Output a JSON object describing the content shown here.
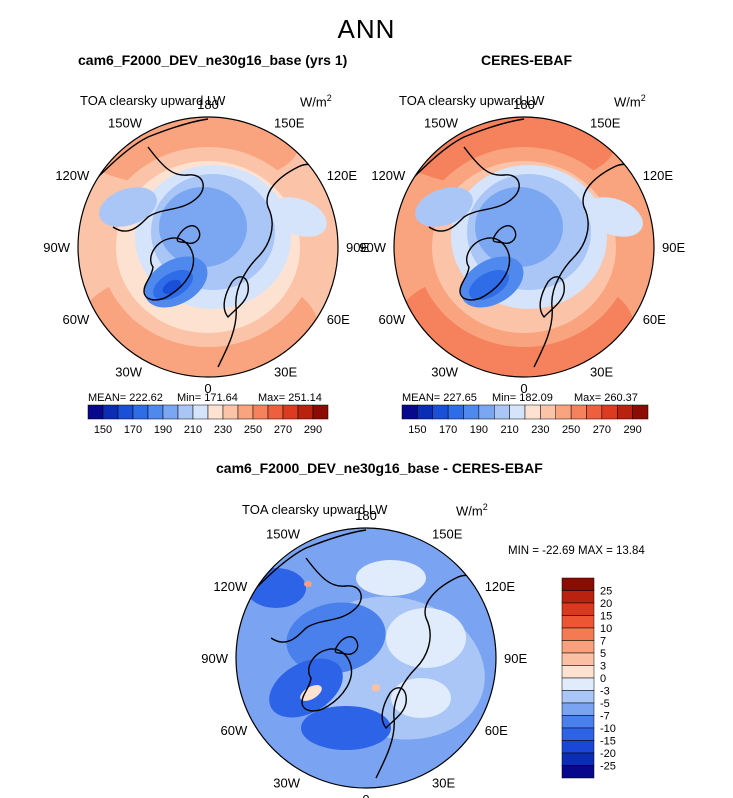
{
  "title": "ANN",
  "colors": {
    "abs_scale": [
      "#08088c",
      "#0b2db6",
      "#1a4fd8",
      "#2f6ce8",
      "#5089ee",
      "#7ba6f2",
      "#a9c6f6",
      "#d5e4fb",
      "#fde2d2",
      "#fbc4a8",
      "#f9a47f",
      "#f5825c",
      "#ee5f3d",
      "#dd3a22",
      "#b8220f",
      "#8a0c04"
    ],
    "diff_scale": [
      "#08088c",
      "#0b2db6",
      "#1b47d8",
      "#2d63e6",
      "#4a80ec",
      "#7aa3f1",
      "#a9c6f6",
      "#e0ecfc",
      "#fde2d2",
      "#fbc0a3",
      "#f9a07c",
      "#f37a52",
      "#ec5633",
      "#d93a1d",
      "#b8220f",
      "#8a0c04"
    ],
    "coast": "#000000"
  },
  "panels": [
    {
      "id": "model",
      "title": "cam6_F2000_DEV_ne30g16_base (yrs 1)",
      "variable": "TOA clearsky upward LW",
      "units": "W/m",
      "units_exp": "2",
      "stats": {
        "mean": "MEAN= 222.62",
        "min": "Min= 171.64",
        "max": "Max= 251.14"
      },
      "colorbar_ticks": [
        "150",
        "170",
        "190",
        "210",
        "230",
        "250",
        "270",
        "290"
      ]
    },
    {
      "id": "obs",
      "title": "CERES-EBAF",
      "variable": "TOA clearsky upward LW",
      "units": "W/m",
      "units_exp": "2",
      "stats": {
        "mean": "MEAN= 227.65",
        "min": "Min= 182.09",
        "max": "Max= 260.37"
      },
      "colorbar_ticks": [
        "150",
        "170",
        "190",
        "210",
        "230",
        "250",
        "270",
        "290"
      ]
    },
    {
      "id": "diff",
      "title": "cam6_F2000_DEV_ne30g16_base - CERES-EBAF",
      "variable": "TOA clearsky upward LW",
      "units": "W/m",
      "units_exp": "2",
      "minmax": "MIN = -22.69 MAX =  13.84",
      "colorbar_ticks": [
        "25",
        "20",
        "15",
        "10",
        "7",
        "5",
        "3",
        "0",
        "-3",
        "-5",
        "-7",
        "-10",
        "-15",
        "-20",
        "-25"
      ]
    }
  ],
  "lon_labels": {
    "n180": "180",
    "w150": "150W",
    "e150": "150E",
    "w120": "120W",
    "e120": "120E",
    "w90": "90W",
    "e90": "90E",
    "w60": "60W",
    "e60": "60E",
    "w30": "30W",
    "e30": "30E",
    "zero": "0"
  }
}
